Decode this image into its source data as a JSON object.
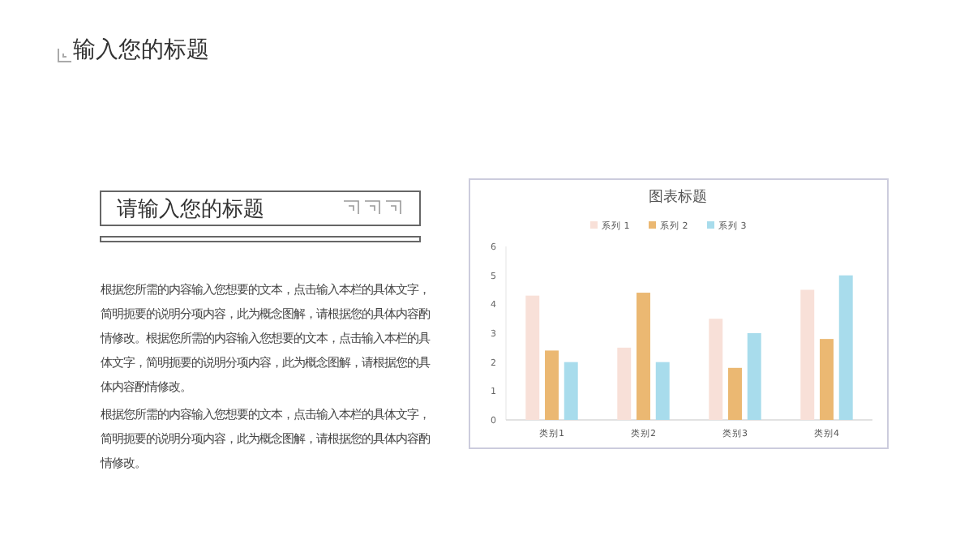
{
  "chart_data": {
    "type": "bar",
    "title": "图表标题",
    "categories": [
      "类别1",
      "类别2",
      "类别3",
      "类别4"
    ],
    "series": [
      {
        "name": "系列 1",
        "color": "#f8e0d8",
        "values": [
          4.3,
          2.5,
          3.5,
          4.5
        ]
      },
      {
        "name": "系列 2",
        "color": "#ebb872",
        "values": [
          2.4,
          4.4,
          1.8,
          2.8
        ]
      },
      {
        "name": "系列 3",
        "color": "#a8dcec",
        "values": [
          2,
          2,
          3,
          5
        ]
      }
    ],
    "ylim": [
      0,
      6
    ],
    "yticks": [
      0,
      1,
      2,
      3,
      4,
      5,
      6
    ],
    "grid": false,
    "legend": "top",
    "annotations": [
      "输入您的标题",
      "请输入您的标题",
      "根据您所需的内容输入您想要的文本，点击输入本栏的具体文字，简明扼要的说明分项内容，此为概念图解，请根据您的具体内容酌情修改。根据您所需的内容输入您想要的文本，点击输入本栏的具体文字，简明扼要的说明分项内容，此为概念图解，请根据您的具体内容酌情修改。",
      "根据您所需的内容输入您想要的文本，点击输入本栏的具体文字，简明扼要的说明分项内容，此为概念图解，请根据您的具体内容酌情修改。"
    ]
  }
}
